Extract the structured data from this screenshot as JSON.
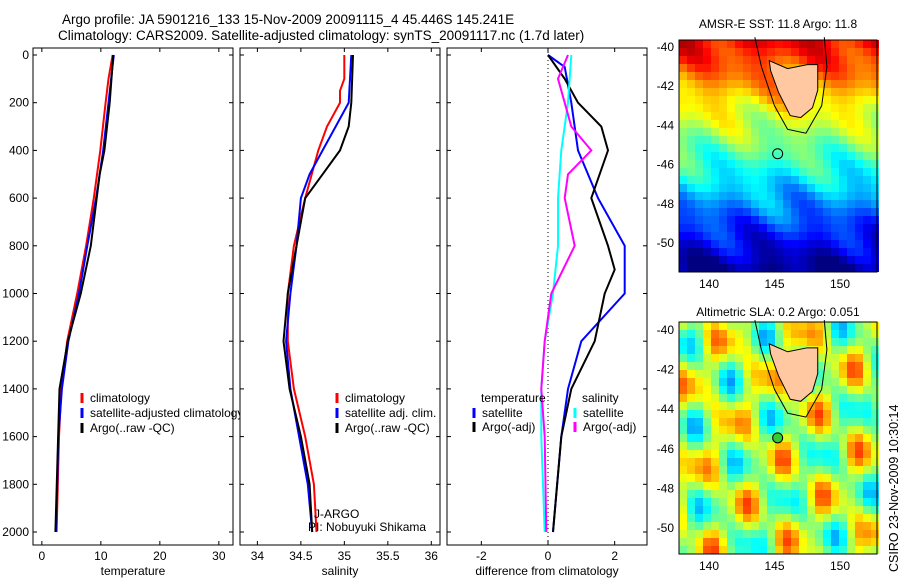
{
  "title": {
    "line1": "Argo profile: JA 5901216_133 15-Nov-2009 20091115_4 45.446S 145.241E",
    "line2": "Climatology: CARS2009. Satellite-adjusted climatology: synTS_20091117.nc (1.7d later)"
  },
  "side_label": "CSIRO 23-Nov-2009 10:30:14",
  "chart_data": [
    {
      "type": "line",
      "xlabel": "temperature",
      "xlim": [
        -1.5,
        32.4
      ],
      "ylim": [
        2100,
        0
      ],
      "xticks": [
        0,
        10,
        20,
        30
      ],
      "yticks": [
        0,
        200,
        400,
        600,
        800,
        1000,
        1200,
        1400,
        1600,
        1800,
        2000
      ],
      "legend": [
        "climatology",
        "satellite-adjusted climatology",
        "Argo(..raw -QC)"
      ],
      "series": [
        {
          "name": "climatology",
          "color": "#ff0000",
          "depth": [
            0,
            100,
            200,
            400,
            600,
            800,
            1000,
            1200,
            1400,
            1600,
            2000
          ],
          "values": [
            12,
            11.3,
            10.8,
            9.9,
            8.8,
            7.5,
            6,
            4.3,
            3.3,
            2.9,
            2.5
          ]
        },
        {
          "name": "satellite-adjusted climatology",
          "color": "#0000ff",
          "depth": [
            0,
            200,
            400,
            600,
            800,
            1000,
            1200,
            1400,
            1600,
            2000
          ],
          "values": [
            12.2,
            11.3,
            10.4,
            9.2,
            7.7,
            6.3,
            4.5,
            3.4,
            2.8,
            2.4
          ]
        },
        {
          "name": "Argo(..raw -QC)",
          "color": "#000000",
          "depth": [
            0,
            200,
            400,
            500,
            600,
            800,
            1000,
            1200,
            1400,
            2000
          ],
          "values": [
            12.1,
            11.5,
            10.6,
            9.8,
            9.3,
            8.3,
            6.6,
            4.4,
            3.0,
            2.3
          ]
        }
      ]
    },
    {
      "type": "line",
      "xlabel": "salinity",
      "xlim": [
        33.8,
        36.1
      ],
      "ylim": [
        2100,
        0
      ],
      "xticks": [
        34,
        34.5,
        35,
        35.5,
        36
      ],
      "yticks": [
        0,
        200,
        400,
        600,
        800,
        1000,
        1200,
        1400,
        1600,
        1800,
        2000
      ],
      "legend": [
        "climatology",
        "satellite adj. clim.",
        "Argo(..raw -QC)"
      ],
      "annotation": [
        "J-ARGO",
        "PI: Nobuyuki Shikama"
      ],
      "series": [
        {
          "name": "climatology",
          "color": "#ff0000",
          "depth": [
            0,
            100,
            150,
            200,
            300,
            400,
            600,
            800,
            1000,
            1200,
            1400,
            1600,
            1800,
            2000
          ],
          "values": [
            35.0,
            35.0,
            34.95,
            34.95,
            34.8,
            34.7,
            34.55,
            34.42,
            34.35,
            34.35,
            34.42,
            34.55,
            34.65,
            34.68
          ]
        },
        {
          "name": "satellite adj. clim.",
          "color": "#0000ff",
          "depth": [
            0,
            200,
            300,
            400,
            500,
            600,
            800,
            1000,
            1200,
            1400,
            1600,
            1800,
            2000
          ],
          "values": [
            35.08,
            35.05,
            34.9,
            34.75,
            34.6,
            34.5,
            34.45,
            34.38,
            34.33,
            34.38,
            34.48,
            34.58,
            34.63
          ]
        },
        {
          "name": "Argo(..raw -QC)",
          "color": "#000000",
          "depth": [
            0,
            200,
            300,
            400,
            500,
            600,
            800,
            1000,
            1200,
            1400,
            1600,
            1800,
            2000
          ],
          "values": [
            35.1,
            35.08,
            35.05,
            34.95,
            34.75,
            34.55,
            34.45,
            34.35,
            34.3,
            34.37,
            34.5,
            34.6,
            34.63
          ]
        }
      ]
    },
    {
      "type": "line",
      "xlabel": "difference from climatology",
      "xlim": [
        -3.03,
        2.97
      ],
      "ylim": [
        2100,
        0
      ],
      "xticks": [
        -2,
        0,
        2
      ],
      "yticks": [
        0,
        200,
        400,
        600,
        800,
        1000,
        1200,
        1400,
        1600,
        1800,
        2000
      ],
      "legend_headers": [
        "temperature",
        "salinity"
      ],
      "legend": [
        "satellite",
        "Argo(-adj)",
        "satellite",
        "Argo(-adj)"
      ],
      "series": [
        {
          "name": "temperature satellite",
          "color": "#0000ff",
          "depth": [
            0,
            50,
            200,
            400,
            600,
            800,
            1000,
            1200,
            1400,
            1600,
            2000
          ],
          "values": [
            0,
            0.5,
            0.7,
            0.9,
            1.5,
            2.3,
            2.3,
            1.0,
            0.6,
            0.4,
            0.15
          ]
        },
        {
          "name": "temperature Argo(-adj)",
          "color": "#000000",
          "depth": [
            0,
            100,
            200,
            300,
            400,
            600,
            800,
            900,
            1000,
            1200,
            1400,
            1600,
            2000
          ],
          "values": [
            0,
            0.5,
            0.9,
            1.6,
            1.8,
            1.3,
            1.8,
            2.0,
            1.7,
            1.4,
            0.7,
            0.4,
            0.15
          ]
        },
        {
          "name": "salinity satellite",
          "color": "#00ffff",
          "depth": [
            0,
            200,
            400,
            600,
            800,
            1000,
            1200,
            1400,
            1600,
            2000
          ],
          "values": [
            0.7,
            0.6,
            0.4,
            0.3,
            0.3,
            0.15,
            -0.1,
            -0.2,
            -0.2,
            -0.1
          ]
        },
        {
          "name": "salinity Argo(-adj)",
          "color": "#ff00ff",
          "depth": [
            0,
            100,
            200,
            300,
            400,
            500,
            600,
            800,
            1000,
            1200,
            1400,
            1600,
            2000
          ],
          "values": [
            0.6,
            0.3,
            0.5,
            0.7,
            1.3,
            0.6,
            0.5,
            0.8,
            0.1,
            -0.1,
            -0.2,
            -0.1,
            -0.05
          ]
        }
      ]
    },
    {
      "type": "heatmap",
      "title": "AMSR-E SST: 11.8 Argo: 11.8",
      "xlim": [
        138,
        152.5
      ],
      "ylim": [
        -51.5,
        -39.5
      ],
      "xticks": [
        140,
        145,
        150
      ],
      "yticks": [
        -40,
        -42,
        -44,
        -46,
        -48,
        -50
      ],
      "marker": [
        145.241,
        -45.446
      ]
    },
    {
      "type": "heatmap",
      "title": "Altimetric SLA: 0.2 Argo: 0.051",
      "xlim": [
        138,
        152.5
      ],
      "ylim": [
        -51.5,
        -39.5
      ],
      "xticks": [
        140,
        145,
        150
      ],
      "yticks": [
        -40,
        -42,
        -44,
        -46,
        -48,
        -50
      ],
      "marker": [
        145.241,
        -45.446
      ]
    }
  ]
}
